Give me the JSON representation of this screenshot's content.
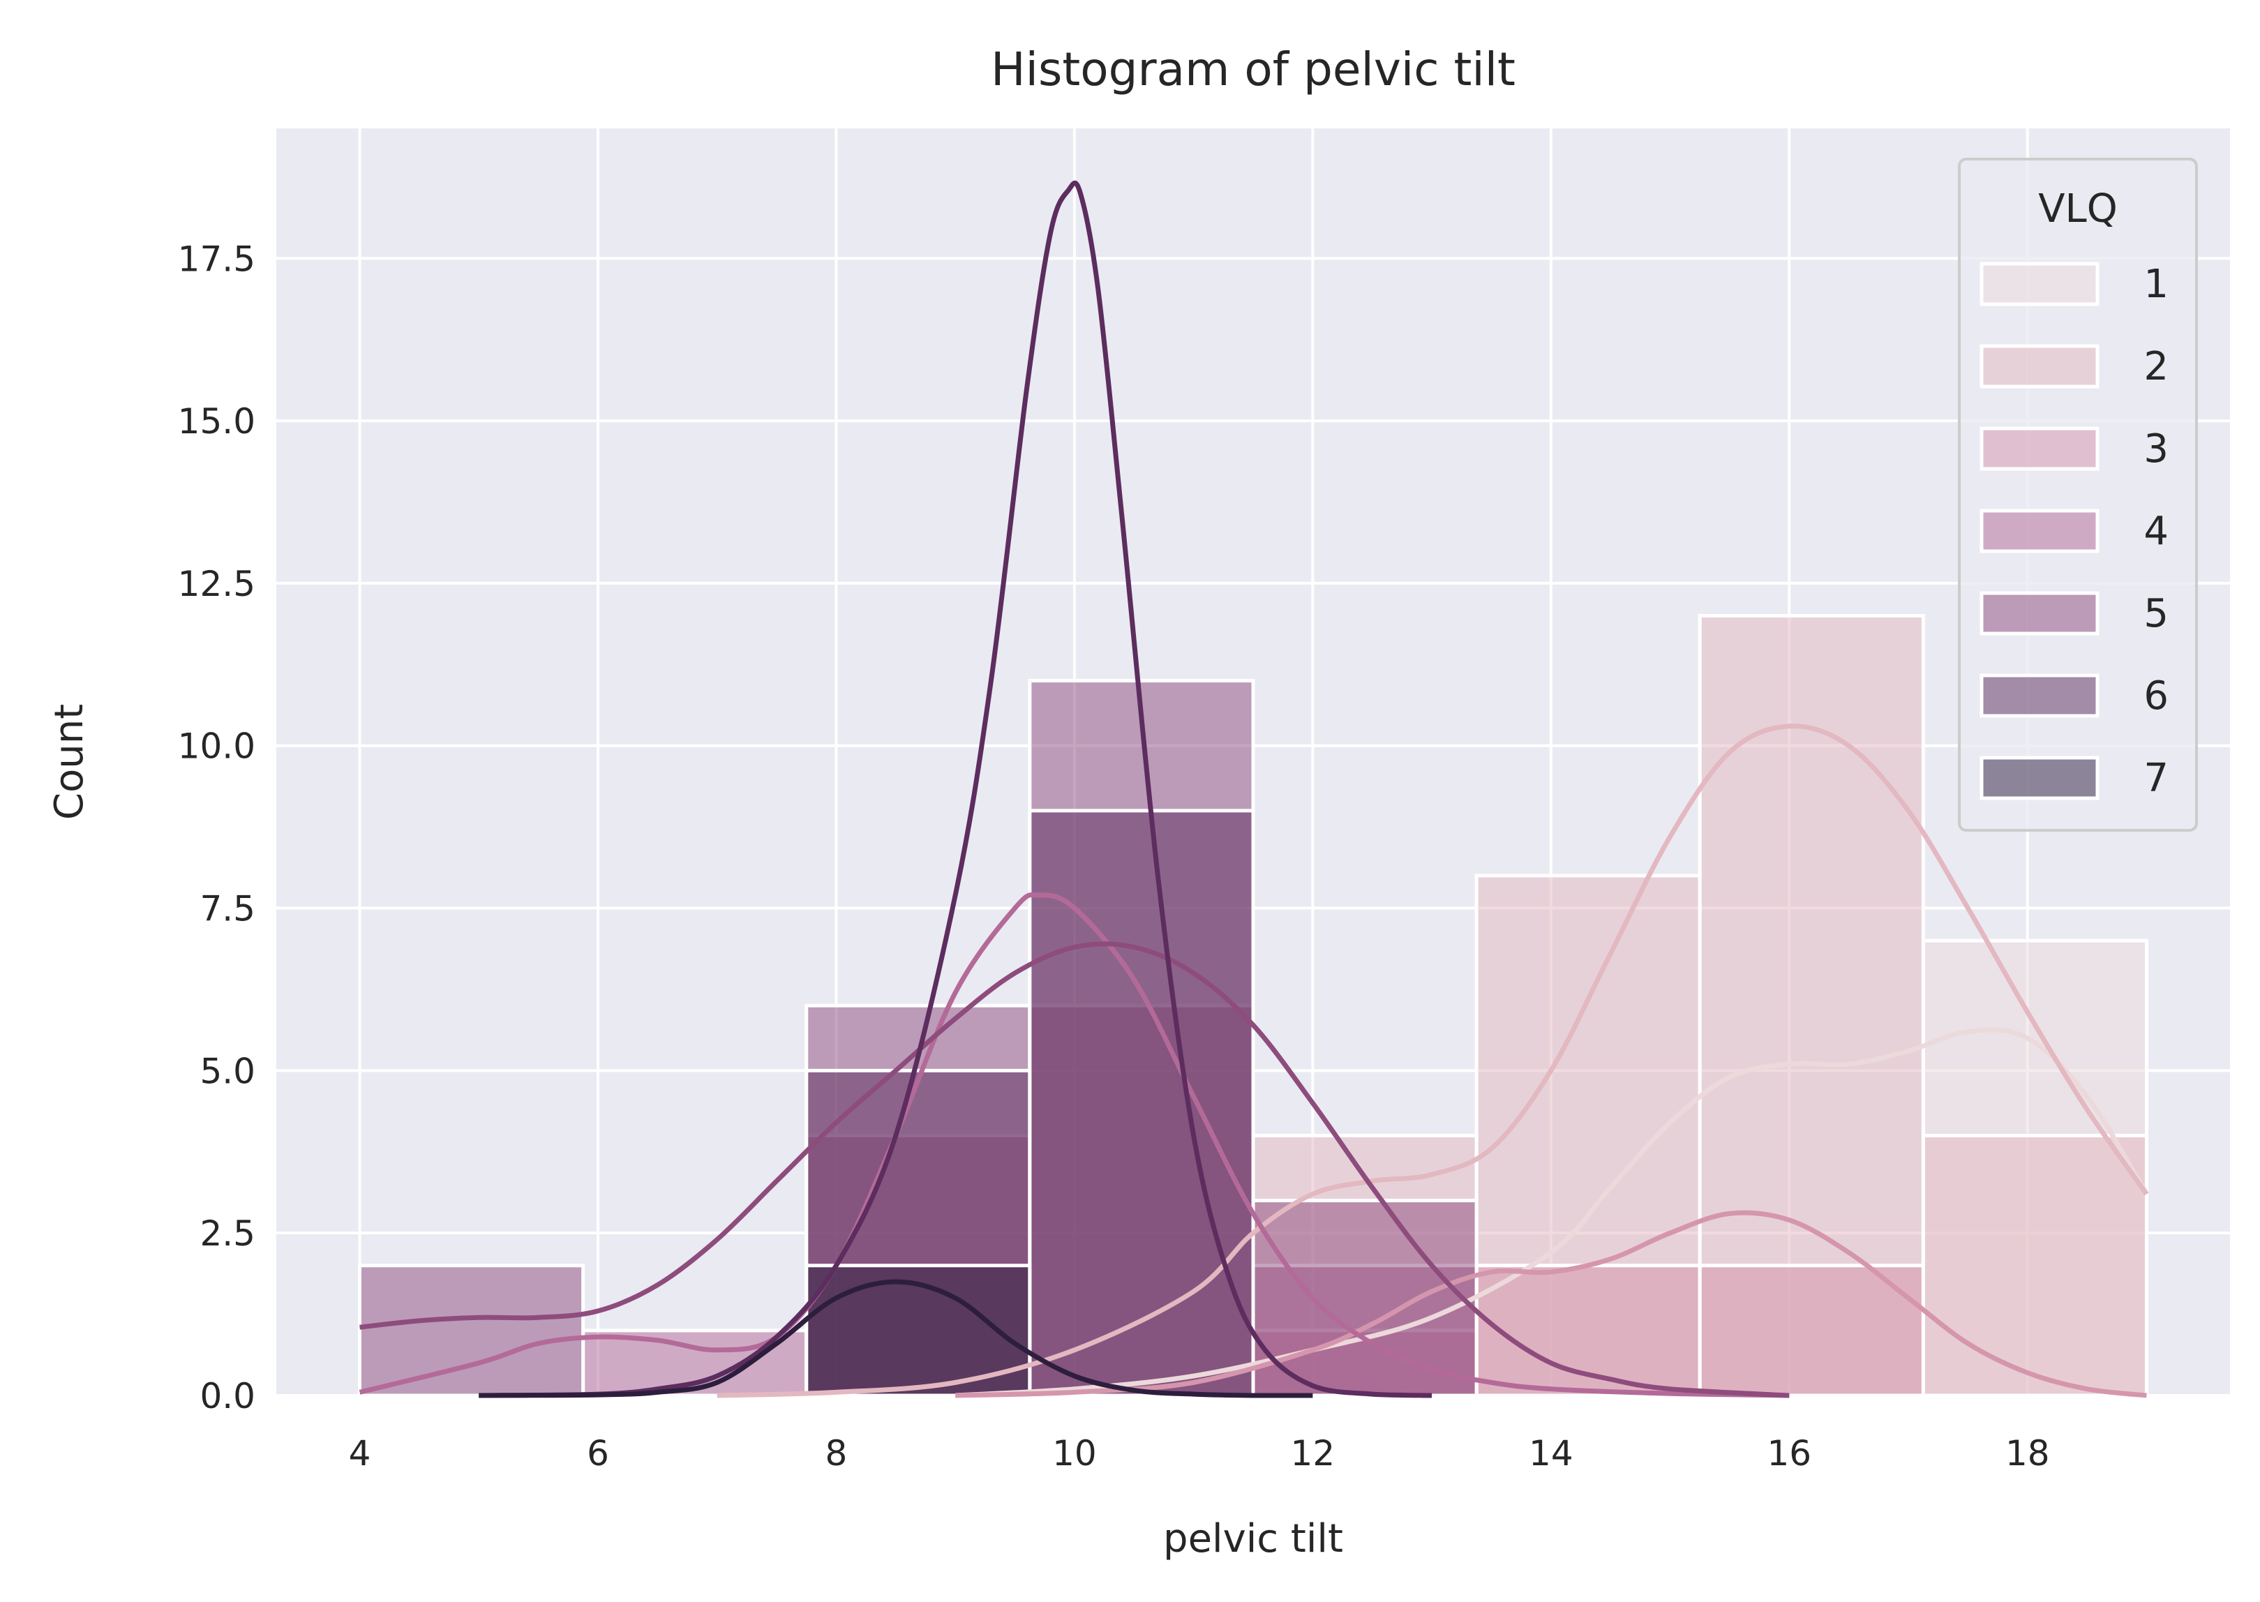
{
  "chart_data": {
    "type": "bar",
    "title": "Histogram of pelvic tilt",
    "xlabel": "pelvic tilt",
    "ylabel": "Count",
    "xlim": [
      3.3,
      19.7
    ],
    "ylim": [
      0,
      19.5
    ],
    "xticks": [
      4,
      6,
      8,
      10,
      12,
      14,
      16,
      18
    ],
    "yticks": [
      0.0,
      2.5,
      5.0,
      7.5,
      10.0,
      12.5,
      15.0,
      17.5
    ],
    "xtick_labels": [
      "4",
      "6",
      "8",
      "10",
      "12",
      "14",
      "16",
      "18"
    ],
    "ytick_labels": [
      "0.0",
      "2.5",
      "5.0",
      "7.5",
      "10.0",
      "12.5",
      "15.0",
      "17.5"
    ],
    "grid": true,
    "legend_position": "top-right",
    "legend_title": "VLQ",
    "bin_edges": [
      4.0,
      5.875,
      7.75,
      9.625,
      11.5,
      13.375,
      15.25,
      17.125,
      19.0
    ],
    "series": [
      {
        "name": "1",
        "color": "#ecd9db",
        "counts": [
          0,
          0,
          0,
          0,
          0,
          2,
          2,
          7
        ],
        "kde_x": [
          9,
          10,
          11,
          12,
          13,
          14,
          14.5,
          15,
          15.5,
          16,
          16.5,
          17,
          17.5,
          18,
          18.5,
          19
        ],
        "kde_y": [
          0,
          0.1,
          0.3,
          0.7,
          1.2,
          2.2,
          3.2,
          4.2,
          4.9,
          5.1,
          5.1,
          5.3,
          5.6,
          5.5,
          4.6,
          3.1
        ]
      },
      {
        "name": "2",
        "color": "#e3b8c0",
        "counts": [
          0,
          0,
          0,
          0,
          4,
          8,
          12,
          4
        ],
        "kde_x": [
          7,
          8,
          9,
          10,
          11,
          11.5,
          12,
          12.5,
          13,
          13.5,
          14,
          14.5,
          15,
          15.5,
          16,
          16.5,
          17,
          17.5,
          18,
          18.5,
          19
        ],
        "kde_y": [
          0,
          0.05,
          0.2,
          0.7,
          1.6,
          2.5,
          3.1,
          3.3,
          3.4,
          3.8,
          5.0,
          6.8,
          8.6,
          9.9,
          10.3,
          10.0,
          9.0,
          7.5,
          5.9,
          4.4,
          3.1
        ]
      },
      {
        "name": "3",
        "color": "#d596ad",
        "counts": [
          0,
          0,
          0,
          0,
          1,
          2,
          2,
          0
        ],
        "kde_x": [
          9,
          10,
          11,
          12,
          12.5,
          13,
          13.5,
          14,
          14.5,
          15,
          15.5,
          16,
          16.5,
          17,
          17.5,
          18,
          18.5,
          19
        ],
        "kde_y": [
          0,
          0.05,
          0.2,
          0.7,
          1.1,
          1.6,
          1.9,
          1.9,
          2.1,
          2.5,
          2.8,
          2.7,
          2.2,
          1.5,
          0.8,
          0.35,
          0.1,
          0
        ]
      },
      {
        "name": "4",
        "color": "#b46a98",
        "counts": [
          0,
          1,
          4,
          6,
          2,
          0,
          0,
          0
        ],
        "kde_x": [
          4,
          5,
          5.5,
          6,
          6.5,
          7,
          7.5,
          8,
          8.5,
          9,
          9.5,
          9.7,
          10,
          10.5,
          11,
          11.5,
          12,
          12.5,
          13,
          13.5,
          14,
          15,
          16
        ],
        "kde_y": [
          0.05,
          0.5,
          0.8,
          0.9,
          0.85,
          0.7,
          0.9,
          2.0,
          4.0,
          6.2,
          7.5,
          7.7,
          7.5,
          6.4,
          4.6,
          2.8,
          1.5,
          0.8,
          0.4,
          0.2,
          0.1,
          0.03,
          0
        ]
      },
      {
        "name": "5",
        "color": "#8e4c7d",
        "counts": [
          2,
          0,
          6,
          11,
          3,
          0,
          0,
          0
        ],
        "kde_x": [
          4,
          4.5,
          5,
          5.5,
          6,
          6.5,
          7,
          7.5,
          8,
          8.5,
          9,
          9.5,
          10,
          10.5,
          11,
          11.5,
          12,
          12.5,
          13,
          13.5,
          14,
          14.5,
          15,
          16
        ],
        "kde_y": [
          1.05,
          1.15,
          1.2,
          1.2,
          1.3,
          1.7,
          2.4,
          3.3,
          4.2,
          5.0,
          5.8,
          6.5,
          6.9,
          6.9,
          6.5,
          5.7,
          4.5,
          3.2,
          2.0,
          1.1,
          0.5,
          0.25,
          0.1,
          0
        ]
      },
      {
        "name": "6",
        "color": "#5c2d5e",
        "counts": [
          0,
          0,
          5,
          9,
          0,
          0,
          0,
          0
        ],
        "kde_x": [
          5,
          6,
          6.5,
          7,
          7.5,
          8,
          8.5,
          9,
          9.3,
          9.6,
          9.8,
          9.95,
          10.05,
          10.2,
          10.4,
          10.7,
          11,
          11.3,
          11.6,
          12,
          12.5,
          13
        ],
        "kde_y": [
          0,
          0.02,
          0.1,
          0.3,
          0.9,
          2.0,
          4.0,
          7.7,
          11.0,
          15.5,
          17.9,
          18.55,
          18.5,
          17.0,
          13.5,
          8.0,
          4.0,
          1.8,
          0.7,
          0.15,
          0.02,
          0
        ]
      },
      {
        "name": "7",
        "color": "#2d1e3e",
        "counts": [
          0,
          0,
          2,
          0,
          0,
          0,
          0,
          0
        ],
        "kde_x": [
          5,
          6,
          6.5,
          7,
          7.5,
          8,
          8.5,
          9,
          9.5,
          10,
          10.5,
          11,
          11.5,
          12
        ],
        "kde_y": [
          0,
          0.01,
          0.05,
          0.2,
          0.8,
          1.5,
          1.75,
          1.5,
          0.8,
          0.3,
          0.08,
          0.02,
          0,
          0
        ]
      }
    ]
  }
}
